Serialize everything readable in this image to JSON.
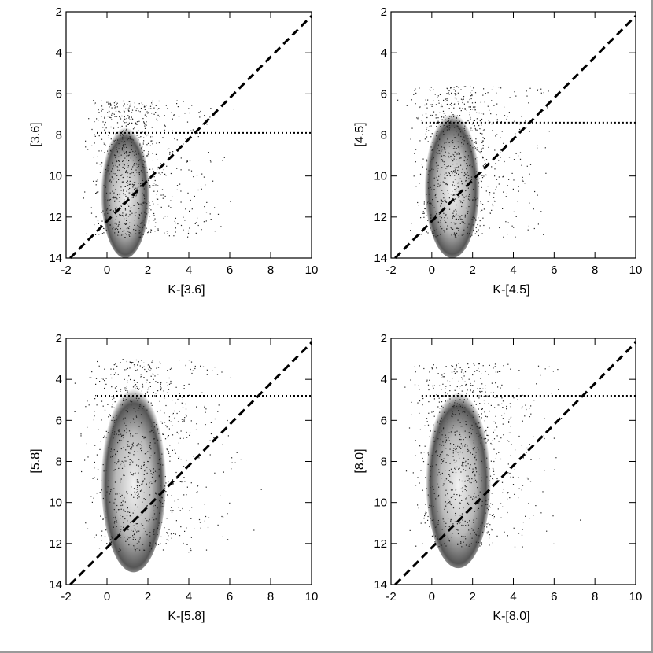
{
  "chart_data": [
    {
      "type": "scatter",
      "xlabel": "K-[3.6]",
      "ylabel": "[3.6]",
      "xlim": [
        -2,
        10
      ],
      "ylim": [
        14,
        2
      ],
      "xticks": [
        -2,
        0,
        2,
        4,
        6,
        8,
        10
      ],
      "yticks": [
        2,
        4,
        6,
        8,
        10,
        12,
        14
      ],
      "density": {
        "x_center": 0.9,
        "x_spread": 0.75,
        "y_top": 6.3,
        "y_bottom": 13.0
      },
      "lines": [
        {
          "name": "dashed",
          "style": "dashed",
          "points": [
            [
              -1.8,
              14.0
            ],
            [
              10.0,
              2.2
            ]
          ]
        },
        {
          "name": "dotted",
          "style": "dotted",
          "points": [
            [
              -0.5,
              7.9
            ],
            [
              10.0,
              7.9
            ]
          ]
        }
      ]
    },
    {
      "type": "scatter",
      "xlabel": "K-[4.5]",
      "ylabel": "[4.5]",
      "xlim": [
        -2,
        10
      ],
      "ylim": [
        14,
        2
      ],
      "xticks": [
        -2,
        0,
        2,
        4,
        6,
        8,
        10
      ],
      "yticks": [
        2,
        4,
        6,
        8,
        10,
        12,
        14
      ],
      "density": {
        "x_center": 1.0,
        "x_spread": 0.85,
        "y_top": 5.6,
        "y_bottom": 13.0
      },
      "lines": [
        {
          "name": "dashed",
          "style": "dashed",
          "points": [
            [
              -1.8,
              14.0
            ],
            [
              10.0,
              2.2
            ]
          ]
        },
        {
          "name": "dotted",
          "style": "dotted",
          "points": [
            [
              -0.5,
              7.4
            ],
            [
              10.0,
              7.4
            ]
          ]
        }
      ]
    },
    {
      "type": "scatter",
      "xlabel": "K-[5.8]",
      "ylabel": "[5.8]",
      "xlim": [
        -2,
        10
      ],
      "ylim": [
        14,
        2
      ],
      "xticks": [
        -2,
        0,
        2,
        4,
        6,
        8,
        10
      ],
      "yticks": [
        2,
        4,
        6,
        8,
        10,
        12,
        14
      ],
      "density": {
        "x_center": 1.3,
        "x_spread": 1.0,
        "y_top": 3.0,
        "y_bottom": 12.4
      },
      "lines": [
        {
          "name": "dashed",
          "style": "dashed",
          "points": [
            [
              -1.8,
              14.0
            ],
            [
              10.0,
              2.2
            ]
          ]
        },
        {
          "name": "dotted",
          "style": "dotted",
          "points": [
            [
              -0.5,
              4.8
            ],
            [
              10.0,
              4.8
            ]
          ]
        }
      ]
    },
    {
      "type": "scatter",
      "xlabel": "K-[8.0]",
      "ylabel": "[8.0]",
      "xlim": [
        -2,
        10
      ],
      "ylim": [
        14,
        2
      ],
      "xticks": [
        -2,
        0,
        2,
        4,
        6,
        8,
        10
      ],
      "yticks": [
        2,
        4,
        6,
        8,
        10,
        12,
        14
      ],
      "density": {
        "x_center": 1.3,
        "x_spread": 1.0,
        "y_top": 3.2,
        "y_bottom": 12.2
      },
      "lines": [
        {
          "name": "dashed",
          "style": "dashed",
          "points": [
            [
              -1.8,
              14.0
            ],
            [
              10.0,
              2.2
            ]
          ]
        },
        {
          "name": "dotted",
          "style": "dotted",
          "points": [
            [
              -0.5,
              4.8
            ],
            [
              10.0,
              4.8
            ]
          ]
        }
      ]
    }
  ]
}
